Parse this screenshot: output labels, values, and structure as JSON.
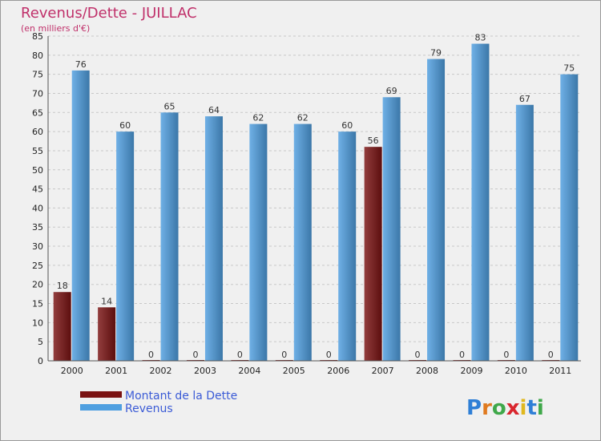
{
  "chart_data": {
    "type": "bar",
    "title": "Revenus/Dette - JUILLAC",
    "subtitle": "(en milliers d'€)",
    "categories": [
      "2000",
      "2001",
      "2002",
      "2003",
      "2004",
      "2005",
      "2006",
      "2007",
      "2008",
      "2009",
      "2010",
      "2011"
    ],
    "series": [
      {
        "name": "Montant de la Dette",
        "color": "#7a1212",
        "values": [
          18,
          14,
          0,
          0,
          0,
          0,
          0,
          56,
          0,
          0,
          0,
          0
        ]
      },
      {
        "name": "Revenus",
        "color": "#4f9fe0",
        "values": [
          76,
          60,
          65,
          64,
          62,
          62,
          60,
          69,
          79,
          83,
          67,
          75
        ]
      }
    ],
    "ylim": [
      0,
      85
    ],
    "ytick_step": 5,
    "grid": true,
    "legend_position": "bottom-left",
    "logo": "Proxiti"
  }
}
